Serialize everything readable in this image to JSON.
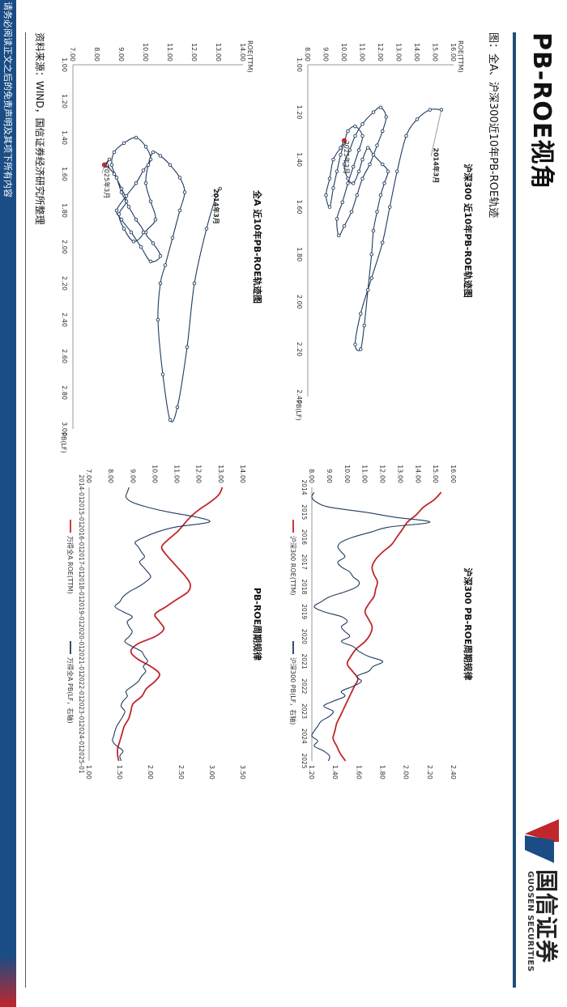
{
  "page": {
    "title": "PB-ROE视角",
    "caption": "图：全A、沪深300近10年PB-ROE轨迹",
    "source": "资料来源：WIND，国信证券经济研究所整理",
    "disclaimer": "请务必阅读正文之后的免责声明及其项下所有内容"
  },
  "logo": {
    "name_cn": "国信证券",
    "name_en": "GUOSEN SECURITIES",
    "colors": {
      "red": "#c0272d",
      "blue": "#1a4c86"
    }
  },
  "colors": {
    "line_blue": "#1f3a5f",
    "line_red": "#c0272d",
    "point_fill": "#ffffff"
  },
  "chart_data": [
    {
      "id": "hs300-trajectory",
      "type": "scatter",
      "title": "沪深300 近10年PB-ROE轨迹图",
      "xlabel": "PB(LF)",
      "ylabel": "ROE(TTM)",
      "xlim": [
        1.0,
        2.4
      ],
      "ylim": [
        8.0,
        16.0
      ],
      "xticks": [
        "1.00",
        "1.20",
        "1.40",
        "1.60",
        "1.80",
        "2.00",
        "2.20",
        "2.40"
      ],
      "yticks": [
        "8.00",
        "9.00",
        "10.00",
        "11.00",
        "12.00",
        "13.00",
        "14.00",
        "15.00",
        "16.00"
      ],
      "annotations": [
        {
          "text": "2014年3月",
          "x": 1.35,
          "y": 14.9
        },
        {
          "text": "2025年3月",
          "x": 1.32,
          "y": 10.0
        }
      ],
      "series": [
        {
          "points": [
            [
              1.19,
              15.33
            ],
            [
              1.19,
              14.7
            ],
            [
              1.23,
              14.0
            ],
            [
              1.3,
              13.4
            ],
            [
              1.45,
              12.9
            ],
            [
              1.6,
              12.5
            ],
            [
              1.75,
              12.1
            ],
            [
              1.9,
              11.5
            ],
            [
              2.05,
              10.9
            ],
            [
              2.18,
              10.6
            ],
            [
              2.2,
              10.9
            ],
            [
              2.1,
              11.1
            ],
            [
              1.95,
              11.3
            ],
            [
              1.8,
              11.5
            ],
            [
              1.7,
              11.6
            ],
            [
              1.62,
              11.8
            ],
            [
              1.55,
              12.0
            ],
            [
              1.5,
              12.2
            ],
            [
              1.45,
              12.4
            ],
            [
              1.42,
              12.1
            ],
            [
              1.38,
              11.6
            ],
            [
              1.35,
              11.3
            ],
            [
              1.4,
              11.0
            ],
            [
              1.45,
              10.8
            ],
            [
              1.5,
              10.5
            ],
            [
              1.48,
              10.2
            ],
            [
              1.42,
              10.0
            ],
            [
              1.36,
              10.3
            ],
            [
              1.3,
              10.6
            ],
            [
              1.25,
              11.0
            ],
            [
              1.2,
              11.6
            ],
            [
              1.18,
              12.0
            ],
            [
              1.22,
              12.3
            ],
            [
              1.28,
              12.1
            ],
            [
              1.34,
              11.8
            ],
            [
              1.42,
              11.4
            ],
            [
              1.48,
              11.0
            ],
            [
              1.55,
              10.7
            ],
            [
              1.62,
              10.4
            ],
            [
              1.68,
              10.0
            ],
            [
              1.72,
              9.7
            ],
            [
              1.65,
              9.6
            ],
            [
              1.58,
              9.9
            ],
            [
              1.5,
              10.2
            ],
            [
              1.43,
              10.5
            ],
            [
              1.36,
              10.8
            ],
            [
              1.3,
              11.0
            ],
            [
              1.26,
              10.6
            ],
            [
              1.28,
              10.2
            ],
            [
              1.33,
              10.0
            ],
            [
              1.38,
              9.8
            ],
            [
              1.45,
              9.6
            ],
            [
              1.52,
              9.4
            ],
            [
              1.6,
              9.2
            ],
            [
              1.55,
              9.0
            ],
            [
              1.48,
              9.2
            ],
            [
              1.4,
              9.4
            ],
            [
              1.35,
              9.8
            ],
            [
              1.32,
              10.0
            ]
          ]
        }
      ]
    },
    {
      "id": "alla-trajectory",
      "type": "scatter",
      "title": "全A 近10年PB-ROE轨迹图",
      "xlabel": "PB(LF)",
      "ylabel": "ROE(TTM)",
      "xlim": [
        1.0,
        3.0
      ],
      "ylim": [
        7.0,
        14.0
      ],
      "xticks": [
        "1.00",
        "1.20",
        "1.40",
        "1.60",
        "1.80",
        "2.00",
        "2.20",
        "2.40",
        "2.60",
        "2.80",
        "3.00"
      ],
      "yticks": [
        "7.00",
        "8.00",
        "9.00",
        "10.00",
        "11.00",
        "12.00",
        "13.00",
        "14.00"
      ],
      "annotations": [
        {
          "text": "2014年3月",
          "x": 1.68,
          "y": 12.8
        },
        {
          "text": "2025年3月",
          "x": 1.55,
          "y": 8.3
        }
      ],
      "series": [
        {
          "points": [
            [
              1.68,
              13.06
            ],
            [
              1.72,
              12.9
            ],
            [
              1.9,
              12.5
            ],
            [
              2.2,
              12.0
            ],
            [
              2.55,
              11.7
            ],
            [
              2.88,
              11.3
            ],
            [
              2.95,
              11.0
            ],
            [
              2.7,
              10.7
            ],
            [
              2.4,
              10.5
            ],
            [
              2.2,
              10.6
            ],
            [
              2.1,
              10.8
            ],
            [
              1.95,
              11.1
            ],
            [
              1.8,
              11.4
            ],
            [
              1.7,
              11.6
            ],
            [
              1.62,
              11.4
            ],
            [
              1.55,
              11.0
            ],
            [
              1.5,
              10.6
            ],
            [
              1.48,
              10.3
            ],
            [
              1.55,
              10.1
            ],
            [
              1.65,
              10.0
            ],
            [
              1.75,
              10.2
            ],
            [
              1.85,
              10.4
            ],
            [
              1.92,
              10.0
            ],
            [
              1.98,
              10.3
            ],
            [
              2.05,
              10.6
            ],
            [
              2.08,
              10.2
            ],
            [
              2.0,
              9.8
            ],
            [
              1.92,
              9.4
            ],
            [
              1.85,
              9.0
            ],
            [
              1.8,
              8.8
            ],
            [
              1.72,
              9.2
            ],
            [
              1.65,
              9.6
            ],
            [
              1.58,
              9.9
            ],
            [
              1.52,
              10.2
            ],
            [
              1.45,
              10.0
            ],
            [
              1.4,
              9.6
            ],
            [
              1.43,
              9.1
            ],
            [
              1.48,
              8.7
            ],
            [
              1.55,
              8.6
            ],
            [
              1.62,
              8.8
            ],
            [
              1.7,
              9.0
            ],
            [
              1.78,
              9.3
            ],
            [
              1.85,
              9.6
            ],
            [
              1.92,
              9.9
            ],
            [
              1.97,
              9.5
            ],
            [
              1.9,
              9.1
            ],
            [
              1.82,
              8.9
            ],
            [
              1.75,
              9.2
            ],
            [
              1.68,
              9.0
            ],
            [
              1.6,
              8.7
            ],
            [
              1.55,
              8.4
            ],
            [
              1.52,
              8.5
            ],
            [
              1.55,
              8.3
            ]
          ]
        }
      ]
    },
    {
      "id": "hs300-timeseries",
      "type": "line",
      "title": "沪深300 PB-ROE周期规律",
      "x_type": "year",
      "xticks": [
        "2014",
        "2015",
        "2016",
        "2017",
        "2018",
        "2019",
        "2020",
        "2021",
        "2022",
        "2023",
        "2024",
        "2025"
      ],
      "xlim": [
        2014.0,
        2025.0
      ],
      "y_left_lim": [
        8.0,
        16.0
      ],
      "y_left_ticks": [
        "8.00",
        "9.00",
        "10.00",
        "11.00",
        "12.00",
        "13.00",
        "14.00",
        "15.00",
        "16.00"
      ],
      "y_right_lim": [
        1.2,
        2.4
      ],
      "y_right_ticks": [
        "1.20",
        "1.40",
        "1.60",
        "1.80",
        "2.00",
        "2.20",
        "2.40"
      ],
      "legend_position": "bottom",
      "series": [
        {
          "name": "沪深300 ROE(TTM)",
          "axis": "left",
          "color": "#c0272d",
          "x": [
            2014.2,
            2014.5,
            2014.8,
            2015.1,
            2015.4,
            2015.7,
            2016.0,
            2016.3,
            2016.6,
            2016.9,
            2017.2,
            2017.5,
            2017.8,
            2018.1,
            2018.4,
            2018.7,
            2019.0,
            2019.3,
            2019.6,
            2019.9,
            2020.2,
            2020.5,
            2020.8,
            2021.1,
            2021.4,
            2021.7,
            2022.0,
            2022.3,
            2022.6,
            2022.9,
            2023.2,
            2023.5,
            2023.8,
            2024.1,
            2024.4,
            2024.7,
            2025.0
          ],
          "y": [
            15.3,
            14.9,
            14.3,
            13.9,
            13.4,
            13.1,
            12.8,
            12.5,
            12.0,
            11.6,
            11.4,
            11.5,
            11.7,
            11.6,
            11.5,
            11.2,
            11.0,
            11.2,
            11.4,
            11.3,
            11.0,
            10.5,
            10.2,
            10.0,
            10.3,
            10.6,
            10.4,
            10.2,
            10.0,
            9.8,
            9.6,
            9.4,
            9.3,
            9.2,
            9.4,
            9.6,
            9.9
          ]
        },
        {
          "name": "沪深300 PB(LF，右轴)",
          "axis": "right",
          "color": "#1f3a5f",
          "x": [
            2014.2,
            2014.4,
            2014.6,
            2014.8,
            2015.0,
            2015.2,
            2015.4,
            2015.6,
            2015.8,
            2016.0,
            2016.2,
            2016.4,
            2016.6,
            2016.8,
            2017.0,
            2017.2,
            2017.4,
            2017.6,
            2017.8,
            2018.0,
            2018.2,
            2018.4,
            2018.6,
            2018.8,
            2019.0,
            2019.2,
            2019.4,
            2019.6,
            2019.8,
            2020.0,
            2020.2,
            2020.4,
            2020.6,
            2020.8,
            2021.0,
            2021.2,
            2021.4,
            2021.6,
            2021.8,
            2022.0,
            2022.2,
            2022.4,
            2022.6,
            2022.8,
            2023.0,
            2023.2,
            2023.4,
            2023.6,
            2023.8,
            2024.0,
            2024.2,
            2024.4,
            2024.6,
            2024.8,
            2025.0
          ],
          "y": [
            1.22,
            1.2,
            1.24,
            1.35,
            1.65,
            1.9,
            2.2,
            1.85,
            1.7,
            1.55,
            1.45,
            1.42,
            1.45,
            1.48,
            1.42,
            1.45,
            1.52,
            1.55,
            1.6,
            1.58,
            1.48,
            1.35,
            1.28,
            1.22,
            1.3,
            1.45,
            1.5,
            1.45,
            1.48,
            1.52,
            1.45,
            1.55,
            1.6,
            1.68,
            1.8,
            1.72,
            1.68,
            1.58,
            1.62,
            1.55,
            1.45,
            1.48,
            1.38,
            1.3,
            1.38,
            1.35,
            1.28,
            1.25,
            1.22,
            1.2,
            1.25,
            1.22,
            1.3,
            1.35,
            1.34
          ]
        }
      ]
    },
    {
      "id": "alla-timeseries",
      "type": "line",
      "title": "PB-ROE周期规律",
      "x_type": "month",
      "xticks": [
        "2014-01",
        "2015-01",
        "2016-01",
        "2017-01",
        "2018-01",
        "2019-01",
        "2020-01",
        "2021-01",
        "2022-01",
        "2023-01",
        "2024-01",
        "2025-01"
      ],
      "xlim": [
        2014.0,
        2025.0
      ],
      "y_left_lim": [
        7.0,
        14.0
      ],
      "y_left_ticks": [
        "7.00",
        "8.00",
        "9.00",
        "10.00",
        "11.00",
        "12.00",
        "13.00",
        "14.00"
      ],
      "y_right_lim": [
        1.0,
        3.5
      ],
      "y_right_ticks": [
        "1.00",
        "1.50",
        "2.00",
        "2.50",
        "3.00",
        "3.50"
      ],
      "legend_position": "bottom",
      "series": [
        {
          "name": "万得全A ROE(TTM)",
          "axis": "left",
          "color": "#c0272d",
          "x": [
            2014.0,
            2014.3,
            2014.6,
            2014.9,
            2015.2,
            2015.5,
            2015.8,
            2016.1,
            2016.4,
            2016.7,
            2017.0,
            2017.3,
            2017.6,
            2017.9,
            2018.2,
            2018.5,
            2018.8,
            2019.1,
            2019.4,
            2019.7,
            2020.0,
            2020.3,
            2020.6,
            2020.9,
            2021.2,
            2021.5,
            2021.8,
            2022.1,
            2022.4,
            2022.7,
            2023.0,
            2023.3,
            2023.6,
            2023.9,
            2024.2,
            2024.5,
            2024.8,
            2025.0
          ],
          "y": [
            13.06,
            12.9,
            12.5,
            12.0,
            11.6,
            11.3,
            11.0,
            10.6,
            10.3,
            10.5,
            10.8,
            11.1,
            11.4,
            11.6,
            11.5,
            11.0,
            10.5,
            10.0,
            10.2,
            10.4,
            10.0,
            9.2,
            8.9,
            9.2,
            9.8,
            10.2,
            10.0,
            9.6,
            9.4,
            9.0,
            8.9,
            8.8,
            8.6,
            8.5,
            8.4,
            8.3,
            8.3,
            8.35
          ]
        },
        {
          "name": "万得全A PB(LF，右轴)",
          "axis": "right",
          "color": "#1f3a5f",
          "x": [
            2014.0,
            2014.2,
            2014.4,
            2014.6,
            2014.8,
            2015.0,
            2015.2,
            2015.4,
            2015.6,
            2015.8,
            2016.0,
            2016.2,
            2016.4,
            2016.6,
            2016.8,
            2017.0,
            2017.2,
            2017.4,
            2017.6,
            2017.8,
            2018.0,
            2018.2,
            2018.4,
            2018.6,
            2018.8,
            2019.0,
            2019.2,
            2019.4,
            2019.6,
            2019.8,
            2020.0,
            2020.2,
            2020.4,
            2020.6,
            2020.8,
            2021.0,
            2021.2,
            2021.4,
            2021.6,
            2021.8,
            2022.0,
            2022.2,
            2022.4,
            2022.6,
            2022.8,
            2023.0,
            2023.2,
            2023.4,
            2023.6,
            2023.8,
            2024.0,
            2024.2,
            2024.4,
            2024.6,
            2024.8,
            2025.0
          ],
          "y": [
            1.65,
            1.62,
            1.6,
            1.7,
            1.95,
            2.3,
            2.75,
            2.95,
            2.4,
            2.1,
            1.9,
            1.75,
            1.8,
            1.85,
            1.9,
            1.82,
            1.88,
            1.95,
            2.0,
            1.92,
            1.8,
            1.65,
            1.55,
            1.5,
            1.42,
            1.55,
            1.7,
            1.62,
            1.65,
            1.7,
            1.65,
            1.58,
            1.7,
            1.85,
            1.9,
            1.95,
            1.88,
            1.92,
            1.85,
            1.8,
            1.7,
            1.6,
            1.62,
            1.55,
            1.52,
            1.58,
            1.55,
            1.5,
            1.45,
            1.42,
            1.4,
            1.38,
            1.45,
            1.55,
            1.5,
            1.52
          ]
        }
      ]
    }
  ]
}
